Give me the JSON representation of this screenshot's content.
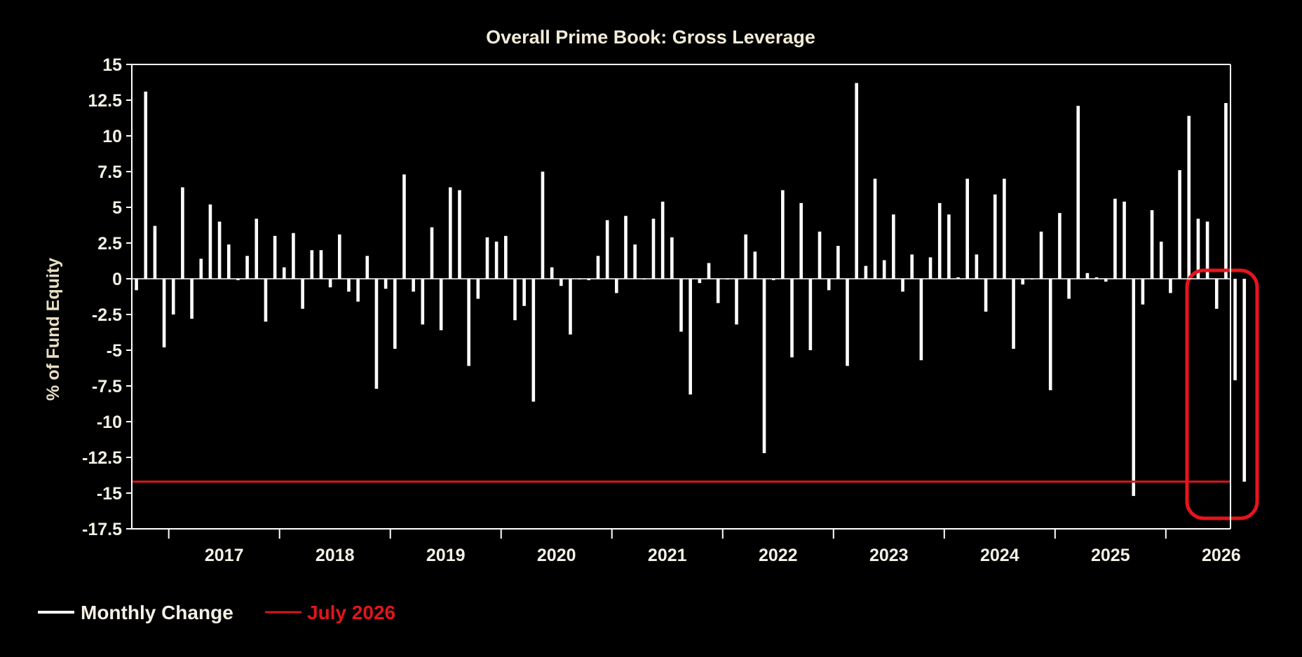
{
  "chart_data": {
    "type": "bar",
    "title": "Overall Prime Book: Gross Leverage",
    "xlabel": "",
    "ylabel": "% of Fund Equity",
    "ylim": [
      -17.5,
      15
    ],
    "yticks": [
      "15",
      "12.5",
      "10",
      "7.5",
      "5",
      "2.5",
      "0",
      "-2.5",
      "-5",
      "-7.5",
      "-10",
      "-12.5",
      "-15",
      "-17.5"
    ],
    "xticks": [
      "2017",
      "2018",
      "2019",
      "2020",
      "2021",
      "2022",
      "2023",
      "2024",
      "2025",
      "2026"
    ],
    "x_start": "2016-09",
    "x_end": "2026-07",
    "grid": false,
    "legend_position": "bottom-left",
    "series": [
      {
        "name": "Monthly Change",
        "color": "#ffffff",
        "values": [
          -0.8,
          13.1,
          3.7,
          -4.8,
          -2.5,
          6.4,
          -2.8,
          1.4,
          5.2,
          4.0,
          2.4,
          -0.1,
          1.6,
          4.2,
          -3.0,
          3.0,
          0.8,
          3.2,
          -2.1,
          2.0,
          2.0,
          -0.6,
          3.1,
          -0.9,
          -1.6,
          1.6,
          -7.7,
          -0.7,
          -4.9,
          7.3,
          -0.9,
          -3.2,
          3.6,
          -3.6,
          6.4,
          6.2,
          -6.1,
          -1.4,
          2.9,
          2.6,
          3.0,
          -2.9,
          -1.9,
          -8.6,
          7.5,
          0.8,
          -0.5,
          -3.9,
          0.0,
          -0.1,
          1.6,
          4.1,
          -1.0,
          4.4,
          2.4,
          0.0,
          4.2,
          5.4,
          2.9,
          -3.7,
          -8.1,
          -0.3,
          1.1,
          -1.7,
          0.0,
          -3.2,
          3.1,
          1.9,
          -12.2,
          -0.1,
          6.2,
          -5.5,
          5.3,
          -5.0,
          3.3,
          -0.8,
          2.3,
          -6.1,
          13.7,
          0.9,
          7.0,
          1.3,
          4.5,
          -0.9,
          1.7,
          -5.7,
          1.5,
          5.3,
          4.5,
          0.1,
          7.0,
          1.7,
          -2.3,
          5.9,
          7.0,
          -4.9,
          -0.4,
          0.0,
          3.3,
          -7.8,
          4.6,
          -1.4,
          12.1,
          0.4,
          0.1,
          -0.2,
          5.6,
          5.4,
          -15.2,
          -1.8,
          4.8,
          2.6,
          -1.0,
          7.6,
          11.4,
          4.2,
          4.0,
          -2.1,
          12.3,
          -7.1,
          -14.2
        ]
      }
    ],
    "reference_line": {
      "name": "July 2026",
      "value": -14.2,
      "color": "#d8141c"
    },
    "highlight_box_color": "#e8141c"
  },
  "legend": {
    "monthly_label": "Monthly Change",
    "july_label": "July 2026"
  },
  "colors": {
    "background": "#000000",
    "bar": "#ffffff",
    "reference_line": "#d8141c",
    "title": "#f2ecd8"
  }
}
